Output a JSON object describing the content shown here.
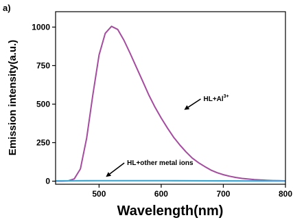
{
  "chart_data": {
    "type": "line",
    "panel_label": "a)",
    "xlabel": "Wavelength(nm)",
    "ylabel": "Emission intensity(a.u.)",
    "xlim": [
      430,
      800
    ],
    "ylim": [
      -20,
      1100
    ],
    "x_ticks": [
      500,
      600,
      700,
      800
    ],
    "y_ticks": [
      0,
      250,
      500,
      750,
      1000
    ],
    "grid": false,
    "series": [
      {
        "color": "#a54b9f",
        "x": [
          430,
          440,
          450,
          460,
          470,
          480,
          490,
          500,
          510,
          520,
          530,
          540,
          550,
          560,
          570,
          580,
          590,
          600,
          610,
          620,
          630,
          640,
          650,
          660,
          670,
          680,
          690,
          700,
          710,
          720,
          730,
          740,
          750,
          760,
          770,
          780,
          790,
          800
        ],
        "y": [
          0,
          0,
          2,
          15,
          80,
          280,
          560,
          820,
          960,
          1005,
          985,
          915,
          830,
          740,
          650,
          560,
          480,
          410,
          345,
          285,
          235,
          190,
          150,
          120,
          95,
          72,
          55,
          42,
          32,
          24,
          18,
          14,
          10,
          8,
          6,
          4,
          3,
          2
        ]
      },
      {
        "color": "#3fa9d6",
        "x": [
          430,
          500,
          600,
          700,
          800
        ],
        "y": [
          2,
          3,
          3,
          2,
          1
        ]
      }
    ],
    "annotations": [
      {
        "text": "HL+Al",
        "superscript": "3+",
        "x": 668,
        "y": 520,
        "arrow_to": [
          637,
          463
        ]
      },
      {
        "text": "HL+other metal ions",
        "x": 545,
        "y": 105,
        "arrow_to": [
          511,
          28
        ]
      }
    ]
  }
}
